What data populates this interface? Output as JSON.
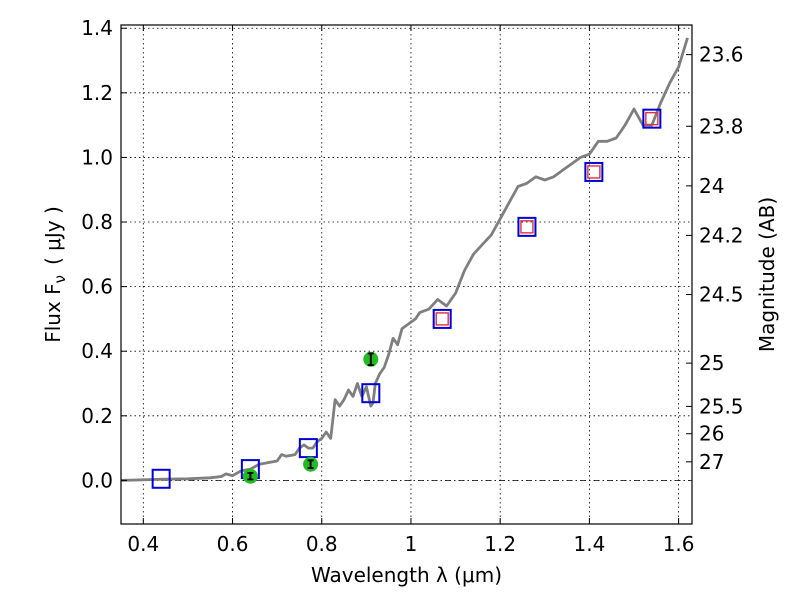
{
  "chart_data": {
    "type": "scatter",
    "xlabel": "Wavelength  λ (μm)",
    "ylabel": "Flux  F",
    "ylabel_sub": "ν",
    "ylabel_unit": "( μJy )",
    "y2label": "Magnitude (AB)",
    "xlim": [
      0.35,
      1.63
    ],
    "ylim": [
      -0.135,
      1.41
    ],
    "grid": true,
    "x_ticks": [
      {
        "value": 0.4,
        "label": "0.4"
      },
      {
        "value": 0.6,
        "label": "0.6"
      },
      {
        "value": 0.8,
        "label": "0.8"
      },
      {
        "value": 1.0,
        "label": "1"
      },
      {
        "value": 1.2,
        "label": "1.2"
      },
      {
        "value": 1.4,
        "label": "1.4"
      },
      {
        "value": 1.6,
        "label": "1.6"
      }
    ],
    "y_ticks": [
      {
        "value": 0.0,
        "label": "0.0"
      },
      {
        "value": 0.2,
        "label": "0.2"
      },
      {
        "value": 0.4,
        "label": "0.4"
      },
      {
        "value": 0.6,
        "label": "0.6"
      },
      {
        "value": 0.8,
        "label": "0.8"
      },
      {
        "value": 1.0,
        "label": "1.0"
      },
      {
        "value": 1.2,
        "label": "1.2"
      },
      {
        "value": 1.4,
        "label": "1.4"
      }
    ],
    "y2_ticks": [
      {
        "value": 23.6,
        "label": "23.6"
      },
      {
        "value": 23.8,
        "label": "23.8"
      },
      {
        "value": 24.0,
        "label": "24"
      },
      {
        "value": 24.2,
        "label": "24.2"
      },
      {
        "value": 24.5,
        "label": "24.5"
      },
      {
        "value": 25.0,
        "label": "25"
      },
      {
        "value": 25.5,
        "label": "25.5"
      },
      {
        "value": 26.0,
        "label": "26"
      },
      {
        "value": 27.0,
        "label": "27"
      }
    ],
    "zero_line": 0.0,
    "colors": {
      "spectrum": "#7f7f7f",
      "model_box": "#0000dd",
      "model_inner": "#e0303a",
      "observed": "#22bb22",
      "errorbar": "#000000"
    },
    "series": [
      {
        "type": "line",
        "x": [
          0.35,
          0.4,
          0.45,
          0.5,
          0.55,
          0.575,
          0.585,
          0.6,
          0.62,
          0.64,
          0.66,
          0.68,
          0.7,
          0.71,
          0.72,
          0.74,
          0.75,
          0.76,
          0.77,
          0.78,
          0.79,
          0.8,
          0.81,
          0.82,
          0.83,
          0.84,
          0.85,
          0.86,
          0.87,
          0.88,
          0.89,
          0.9,
          0.91,
          0.915,
          0.92,
          0.93,
          0.94,
          0.95,
          0.96,
          0.97,
          0.98,
          0.99,
          1.0,
          1.01,
          1.02,
          1.04,
          1.06,
          1.08,
          1.1,
          1.12,
          1.14,
          1.16,
          1.18,
          1.2,
          1.22,
          1.24,
          1.26,
          1.28,
          1.3,
          1.32,
          1.34,
          1.36,
          1.38,
          1.4,
          1.42,
          1.44,
          1.46,
          1.48,
          1.5,
          1.52,
          1.54,
          1.56,
          1.58,
          1.6,
          1.62
        ],
        "y": [
          0.0,
          0.002,
          0.004,
          0.005,
          0.008,
          0.012,
          0.02,
          0.015,
          0.03,
          0.035,
          0.05,
          0.055,
          0.06,
          0.08,
          0.075,
          0.08,
          0.1,
          0.11,
          0.1,
          0.1,
          0.12,
          0.13,
          0.15,
          0.13,
          0.25,
          0.23,
          0.25,
          0.28,
          0.26,
          0.3,
          0.26,
          0.29,
          0.23,
          0.24,
          0.3,
          0.33,
          0.35,
          0.39,
          0.44,
          0.42,
          0.47,
          0.48,
          0.49,
          0.5,
          0.52,
          0.53,
          0.56,
          0.54,
          0.58,
          0.65,
          0.7,
          0.73,
          0.76,
          0.81,
          0.86,
          0.91,
          0.92,
          0.94,
          0.93,
          0.94,
          0.96,
          0.98,
          1.0,
          1.01,
          1.05,
          1.05,
          1.06,
          1.1,
          1.15,
          1.1,
          1.1,
          1.17,
          1.23,
          1.28,
          1.37
        ]
      },
      {
        "type": "boxes",
        "x": [
          0.44,
          0.64,
          0.77,
          0.91,
          1.07,
          1.26,
          1.41,
          1.54
        ],
        "y": [
          0.005,
          0.035,
          0.1,
          0.27,
          0.5,
          0.785,
          0.955,
          1.12
        ],
        "inner": [
          false,
          false,
          false,
          false,
          true,
          true,
          true,
          true
        ]
      },
      {
        "type": "points",
        "x": [
          0.64,
          0.775,
          0.91
        ],
        "y": [
          0.013,
          0.05,
          0.375
        ],
        "err": [
          0.01,
          0.012,
          0.018
        ]
      }
    ]
  }
}
